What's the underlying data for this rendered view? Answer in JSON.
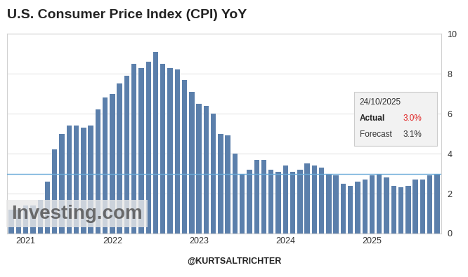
{
  "chart_data": {
    "type": "bar",
    "title": "U.S. Consumer Price Index (CPI) YoY",
    "categories": [
      null,
      null,
      "2021",
      null,
      null,
      null,
      null,
      null,
      null,
      null,
      null,
      null,
      null,
      null,
      "2022",
      null,
      null,
      null,
      null,
      null,
      null,
      null,
      null,
      null,
      null,
      null,
      "2023",
      null,
      null,
      null,
      null,
      null,
      null,
      null,
      null,
      null,
      null,
      null,
      "2024",
      null,
      null,
      null,
      null,
      null,
      null,
      null,
      null,
      null,
      null,
      null,
      "2025",
      null,
      null,
      null,
      null,
      null,
      null,
      null,
      null,
      null
    ],
    "values": [
      1.2,
      1.2,
      1.4,
      1.4,
      1.7,
      2.6,
      4.2,
      5.0,
      5.4,
      5.4,
      5.3,
      5.4,
      6.2,
      6.8,
      7.0,
      7.5,
      7.9,
      8.5,
      8.3,
      8.6,
      9.1,
      8.5,
      8.3,
      8.2,
      7.7,
      7.1,
      6.5,
      6.4,
      6.0,
      5.0,
      4.9,
      4.0,
      3.0,
      3.2,
      3.7,
      3.7,
      3.2,
      3.1,
      3.4,
      3.1,
      3.2,
      3.5,
      3.4,
      3.3,
      3.0,
      2.9,
      2.5,
      2.4,
      2.6,
      2.7,
      2.9,
      3.0,
      2.8,
      2.4,
      2.3,
      2.4,
      2.7,
      2.7,
      2.9,
      3.0
    ],
    "color": "#5b7fab",
    "ylim": [
      0,
      10
    ],
    "yticks": [
      0,
      2,
      4,
      6,
      8,
      10
    ],
    "grid": true,
    "tooltip": {
      "date": "24/10/2025",
      "actual": {
        "label": "Actual",
        "value": 3.0,
        "text": "3.0%"
      },
      "forecast": {
        "label": "Forecast",
        "value": 3.1,
        "text": "3.1%"
      }
    },
    "watermark": "Investing.com",
    "credit": "@KURTSALTRICHTER"
  }
}
